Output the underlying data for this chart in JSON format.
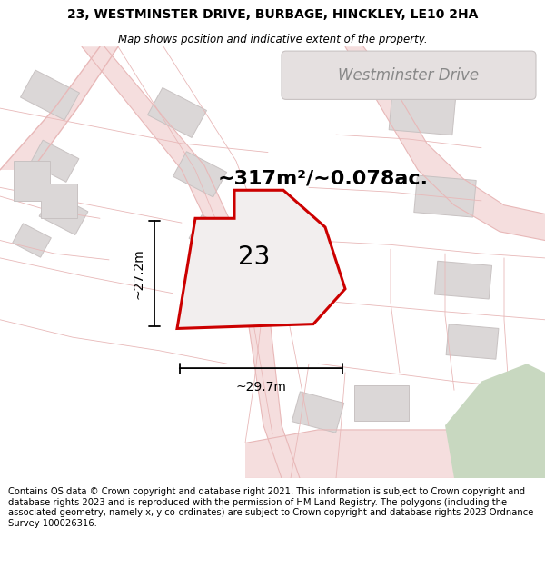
{
  "title_line1": "23, WESTMINSTER DRIVE, BURBAGE, HINCKLEY, LE10 2HA",
  "title_line2": "Map shows position and indicative extent of the property.",
  "footer_text": "Contains OS data © Crown copyright and database right 2021. This information is subject to Crown copyright and database rights 2023 and is reproduced with the permission of HM Land Registry. The polygons (including the associated geometry, namely x, y co-ordinates) are subject to Crown copyright and database rights 2023 Ordnance Survey 100026316.",
  "area_label": "~317m²/~0.078ac.",
  "width_label": "~29.7m",
  "height_label": "~27.2m",
  "number_label": "23",
  "street_label": "Westminster Drive",
  "map_bg": "#f7f3f3",
  "road_fill": "#f5dede",
  "road_edge": "#e8b8b8",
  "building_fill": "#dbd7d7",
  "building_stroke": "#c8c2c2",
  "prop_fill": "#f2eeee",
  "prop_stroke": "#cc0000",
  "cadastral_color": "#e8b8b8",
  "green_fill": "#c8d8c0",
  "street_label_bg": "#e8e4e4",
  "street_label_color": "#888888",
  "title_fontsize": 10,
  "subtitle_fontsize": 8.5,
  "footer_fontsize": 7.2,
  "area_fontsize": 16,
  "number_fontsize": 20,
  "dim_fontsize": 10,
  "street_fontsize": 12
}
